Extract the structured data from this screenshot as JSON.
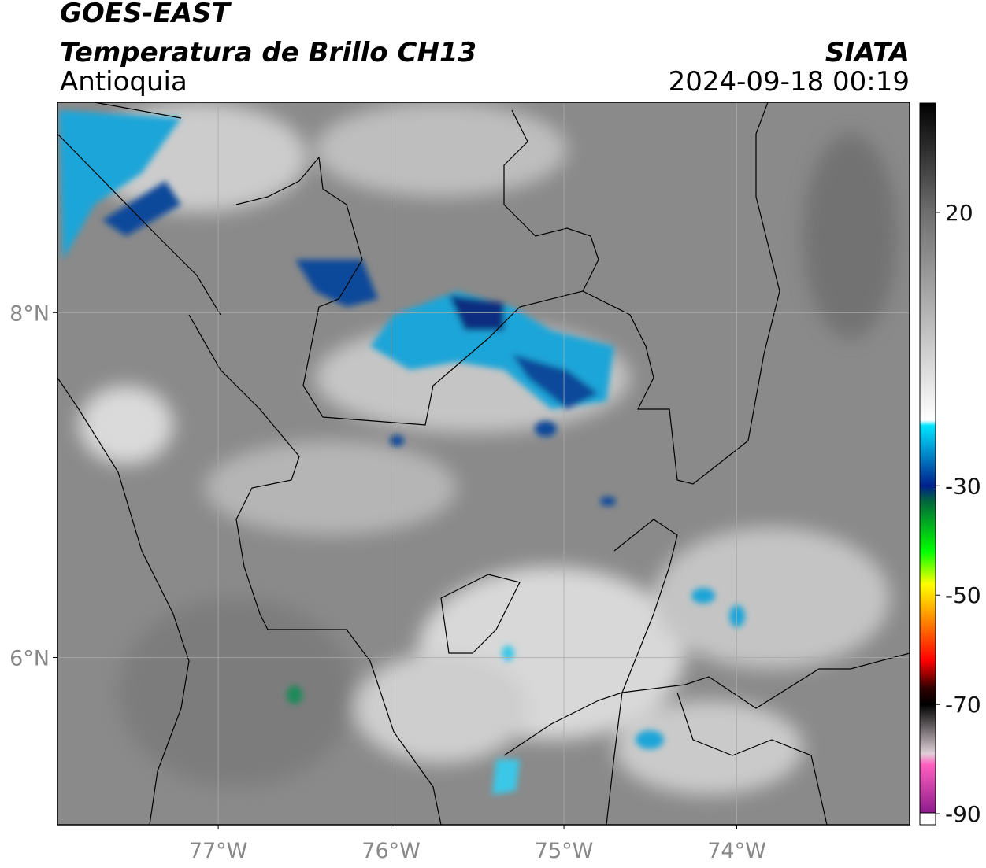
{
  "header": {
    "title": "GOES-EAST",
    "subtitle": "Temperatura de Brillo CH13",
    "region": "Antioquia",
    "source": "SIATA",
    "datetime": "2024-09-18 00:19"
  },
  "map": {
    "xlim": [
      -77.93,
      -73.0
    ],
    "ylim": [
      5.03,
      9.22
    ],
    "xticks": [
      {
        "value": -77,
        "label": "77°W"
      },
      {
        "value": -76,
        "label": "76°W"
      },
      {
        "value": -75,
        "label": "75°W"
      },
      {
        "value": -74,
        "label": "74°W"
      }
    ],
    "yticks": [
      {
        "value": 8,
        "label": "8°N"
      },
      {
        "value": 6,
        "label": "6°N"
      }
    ],
    "grid": true
  },
  "colorbar": {
    "ylim": [
      -92,
      40
    ],
    "yticks": [
      20,
      -30,
      -50,
      -70,
      -90
    ],
    "stops": [
      {
        "value": 40,
        "color": "#000000"
      },
      {
        "value": 20,
        "color": "#6e6e6e"
      },
      {
        "value": -18,
        "color": "#ffffff"
      },
      {
        "value": -19,
        "color": "#00e5ff"
      },
      {
        "value": -30,
        "color": "#00208c"
      },
      {
        "value": -33,
        "color": "#006a3a"
      },
      {
        "value": -42,
        "color": "#00ff00"
      },
      {
        "value": -48,
        "color": "#ffff00"
      },
      {
        "value": -55,
        "color": "#ff8000"
      },
      {
        "value": -62,
        "color": "#ff0000"
      },
      {
        "value": -67,
        "color": "#300000"
      },
      {
        "value": -70,
        "color": "#000000"
      },
      {
        "value": -79,
        "color": "#e0d0d8"
      },
      {
        "value": -81,
        "color": "#ff60c0"
      },
      {
        "value": -90,
        "color": "#8a1a8a"
      }
    ]
  }
}
